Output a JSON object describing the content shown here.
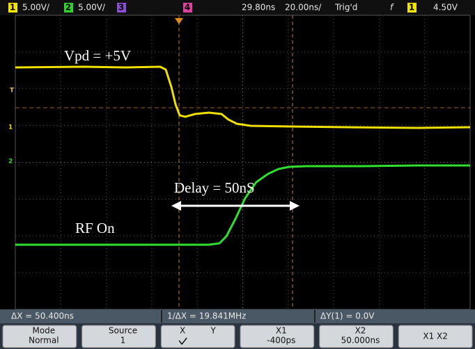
{
  "status_bar": {
    "ch1": "1",
    "ch1_scale": "5.00V/",
    "ch2": "2",
    "ch2_scale": "5.00V/",
    "ch3": "3",
    "ch4": "4",
    "delay": "29.80ns",
    "timebase": "20.00ns/",
    "trigger_state": "Trig'd",
    "trigger_slope": "f",
    "trigger_source": "1",
    "trigger_level": "4.50V"
  },
  "markers": {
    "trigger": "T",
    "ch1": "1",
    "ch2": "2"
  },
  "annotations": {
    "vpd": "Vpd = +5V",
    "delay": "Delay = 50nS",
    "rf": "RF On"
  },
  "measurements": {
    "dx": "ΔX = 50.400ns",
    "inv_dx": "1/ΔX = 19.841MHz",
    "dy": "ΔY(1) = 0.0V"
  },
  "softkeys": [
    {
      "lines": [
        "Mode",
        "Normal"
      ]
    },
    {
      "lines": [
        "Source",
        "1"
      ]
    },
    {
      "lines": [
        "X",
        "Y"
      ]
    },
    {
      "lines": [
        "X1",
        "-400ps"
      ]
    },
    {
      "lines": [
        "X2",
        "50.000ns"
      ]
    },
    {
      "lines": [
        "X1 X2"
      ]
    }
  ]
}
